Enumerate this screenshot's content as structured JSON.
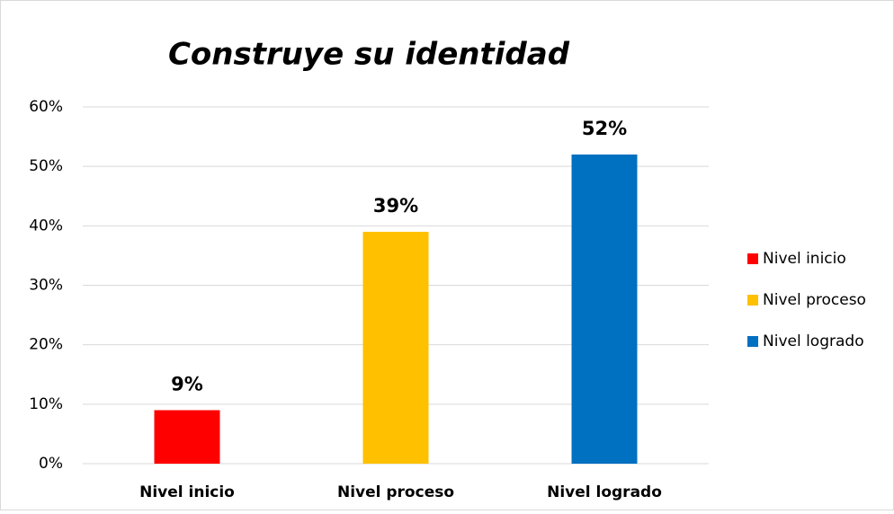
{
  "chart_data": {
    "type": "bar",
    "title": "Construye su identidad",
    "categories": [
      "Nivel inicio",
      "Nivel proceso",
      "Nivel logrado"
    ],
    "values": [
      9,
      39,
      52
    ],
    "value_labels": [
      "9%",
      "39%",
      "52%"
    ],
    "colors": [
      "#ff0000",
      "#ffc000",
      "#0070c0"
    ],
    "ylim": [
      0,
      60
    ],
    "yticks": [
      {
        "value": 0,
        "label": "0%"
      },
      {
        "value": 10,
        "label": "10%"
      },
      {
        "value": 20,
        "label": "20%"
      },
      {
        "value": 30,
        "label": "30%"
      },
      {
        "value": 40,
        "label": "40%"
      },
      {
        "value": 50,
        "label": "50%"
      },
      {
        "value": 60,
        "label": "60%"
      }
    ],
    "grid": true,
    "legend": "right"
  }
}
